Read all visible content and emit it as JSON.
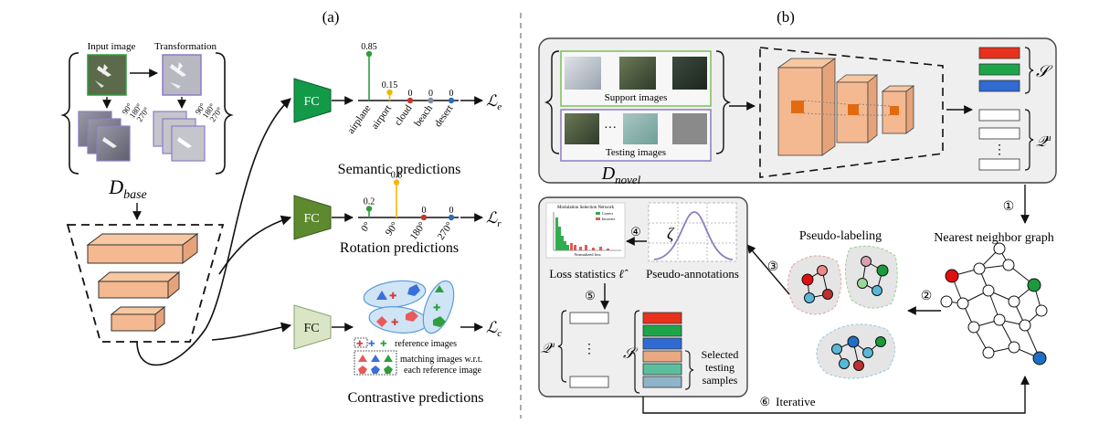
{
  "panel_a": {
    "label": "(a)",
    "input_image_label": "Input image",
    "transformation_label": "Transformation",
    "rotation_labels": [
      "90°",
      "180°",
      "270°"
    ],
    "dbase_label": "D",
    "dbase_sub": "base",
    "fc_label": "FC",
    "semantic": {
      "title": "Semantic predictions",
      "loss": "ℒ",
      "loss_sub": "e",
      "categories": [
        "airplane",
        "airport",
        "cloud",
        "beach",
        "desert"
      ],
      "values": [
        0.85,
        0.15,
        0,
        0,
        0
      ],
      "value_labels": [
        "0.85",
        "0.15",
        "0",
        "0",
        "0"
      ],
      "colors": [
        "#2e9e3e",
        "#f2b705",
        "#c0392b",
        "#7f8fa6",
        "#2a6fb5"
      ]
    },
    "rotation": {
      "title": "Rotation predictions",
      "loss": "ℒ",
      "loss_sub": "r",
      "categories": [
        "0°",
        "90°",
        "180°",
        "270°"
      ],
      "values": [
        0.2,
        0.8,
        0,
        0
      ],
      "value_labels": [
        "0.2",
        "0.8",
        "0",
        "0"
      ],
      "colors": [
        "#2e9e3e",
        "#f2b705",
        "#c0392b",
        "#2a6fb5"
      ]
    },
    "contrastive": {
      "title": "Contrastive predictions",
      "loss": "ℒ",
      "loss_sub": "c",
      "legend_reference": "reference images",
      "legend_matching_1": "matching images w.r.t.",
      "legend_matching_2": "each reference image"
    }
  },
  "panel_b": {
    "label": "(b)",
    "support_label": "Support images",
    "testing_label": "Testing images",
    "ellipsis": "···",
    "dnovel_label": "D",
    "dnovel_sub": "novel",
    "s_label": "𝒮",
    "q_label": "𝒬",
    "q_sup": "u",
    "vdots": "⋮",
    "step1": "①",
    "step2": "②",
    "step3": "③",
    "step4": "④",
    "step5": "⑤",
    "step6": "⑥",
    "nn_graph_label": "Nearest neighbor graph",
    "pseudo_labeling_label": "Pseudo-labeling",
    "pseudo_annotations_label": "Pseudo-annotations",
    "zeta": "ζ",
    "loss_stats_label": "Loss statistics",
    "loss_symbol": "ℓ̂",
    "histogram_title": "Modulation Selection Network",
    "histogram_xlabel": "Normalized loss",
    "histogram_legend": [
      "Correct",
      "Incorrect"
    ],
    "selected_label_1": "Selected",
    "selected_label_2": "testing",
    "selected_label_3": "samples",
    "iterative_label": "Iterative",
    "s_colors": [
      "#e8311d",
      "#1ea54a",
      "#2f6bd3"
    ],
    "selected_colors": [
      "#e8311d",
      "#1ea54a",
      "#2f6bd3",
      "#e8a983",
      "#5bbf9e",
      "#8fb4c9"
    ]
  }
}
